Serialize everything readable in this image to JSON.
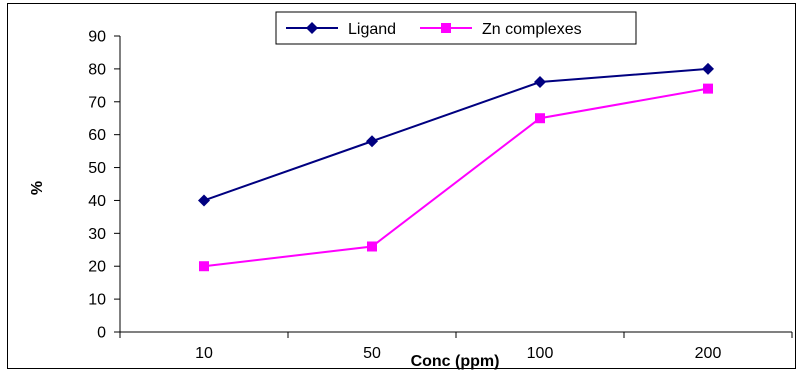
{
  "chart_data": {
    "type": "line",
    "categories": [
      "10",
      "50",
      "100",
      "200"
    ],
    "series": [
      {
        "name": "Ligand",
        "values": [
          40,
          58,
          76,
          80
        ],
        "color": "#000080",
        "marker": "diamond"
      },
      {
        "name": "Zn complexes",
        "values": [
          20,
          26,
          65,
          74
        ],
        "color": "#ff00ff",
        "marker": "square"
      }
    ],
    "xlabel": "Conc (ppm)",
    "ylabel": "%",
    "ylim": [
      0,
      90
    ],
    "yticks": [
      "0",
      "10",
      "20",
      "30",
      "40",
      "50",
      "60",
      "70",
      "80",
      "90"
    ],
    "grid": false,
    "legend_position": "top"
  }
}
